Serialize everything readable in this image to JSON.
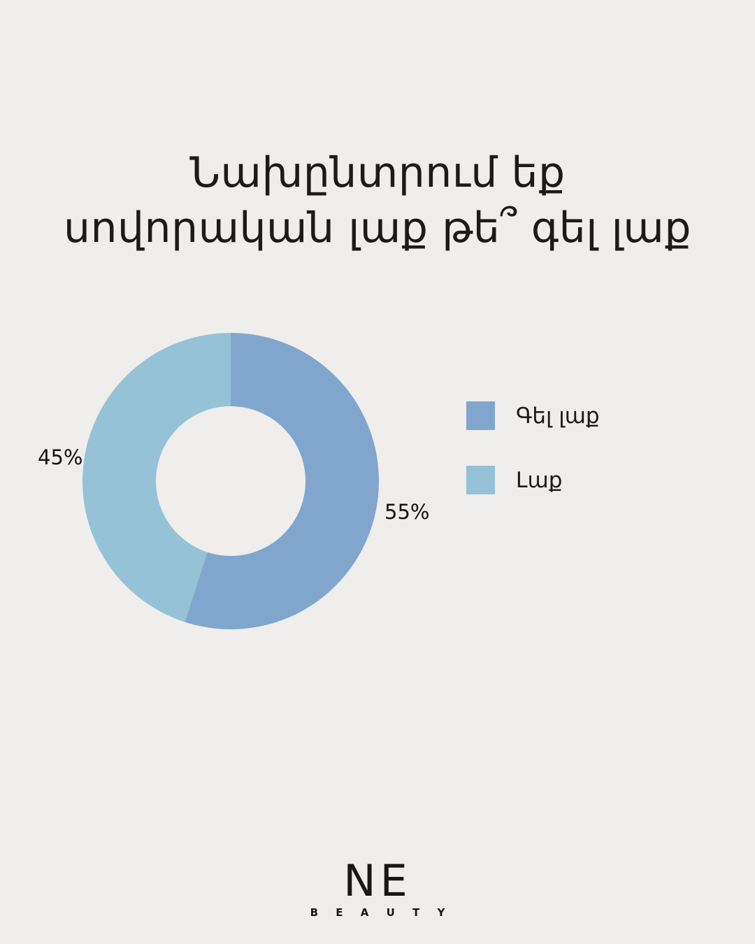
{
  "page": {
    "background_color": "#efeeec",
    "text_color": "#1b1b1b"
  },
  "title": {
    "line1": "Նախընտրում եք",
    "line2": "սովորական լաք թե՞ գել լաք"
  },
  "chart_data": {
    "type": "pie",
    "subtype": "donut",
    "title": "Նախընտրում եք սովորական լաք թե՞ գել լաք",
    "categories": [
      "Գել լաք",
      "Լաք"
    ],
    "values": [
      55,
      45
    ],
    "labels": [
      "55%",
      "45%"
    ],
    "colors": [
      "#81a6cd",
      "#95c2d6"
    ],
    "start_angle_deg": 0,
    "direction": "clockwise",
    "inner_radius_ratio": 0.505,
    "legend_position": "right",
    "label_position": "outside"
  },
  "logo": {
    "name": "NE",
    "sub": "B E A U T Y"
  }
}
